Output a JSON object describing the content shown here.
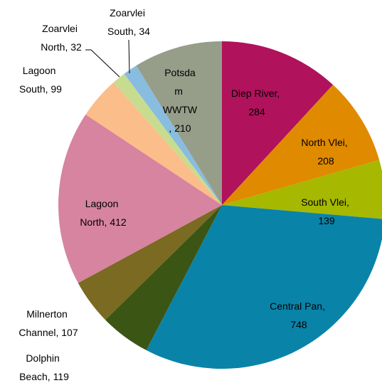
{
  "chart_data": {
    "type": "pie",
    "values": [
      284,
      208,
      139,
      748,
      119,
      107,
      412,
      99,
      32,
      34,
      210
    ],
    "value_labels": [
      "Diep River, 284",
      "North Vlei, 208",
      "South Vlei, 139",
      "Central Pan, 748",
      "Dolphin Beach, 119",
      "Milnerton Channel, 107",
      "Lagoon North, 412",
      "Lagoon South, 99",
      "Zoarvlei North, 32",
      "Zoarvlei South, 34",
      "Potsdam WWTW, 210"
    ],
    "colors": [
      "#b0125b",
      "#e08a00",
      "#a6b800",
      "#0a83a8",
      "#3b5514",
      "#7a6a22",
      "#d6849f",
      "#fbbd8a",
      "#c8dc8f",
      "#88bde0",
      "#969e8a"
    ]
  }
}
